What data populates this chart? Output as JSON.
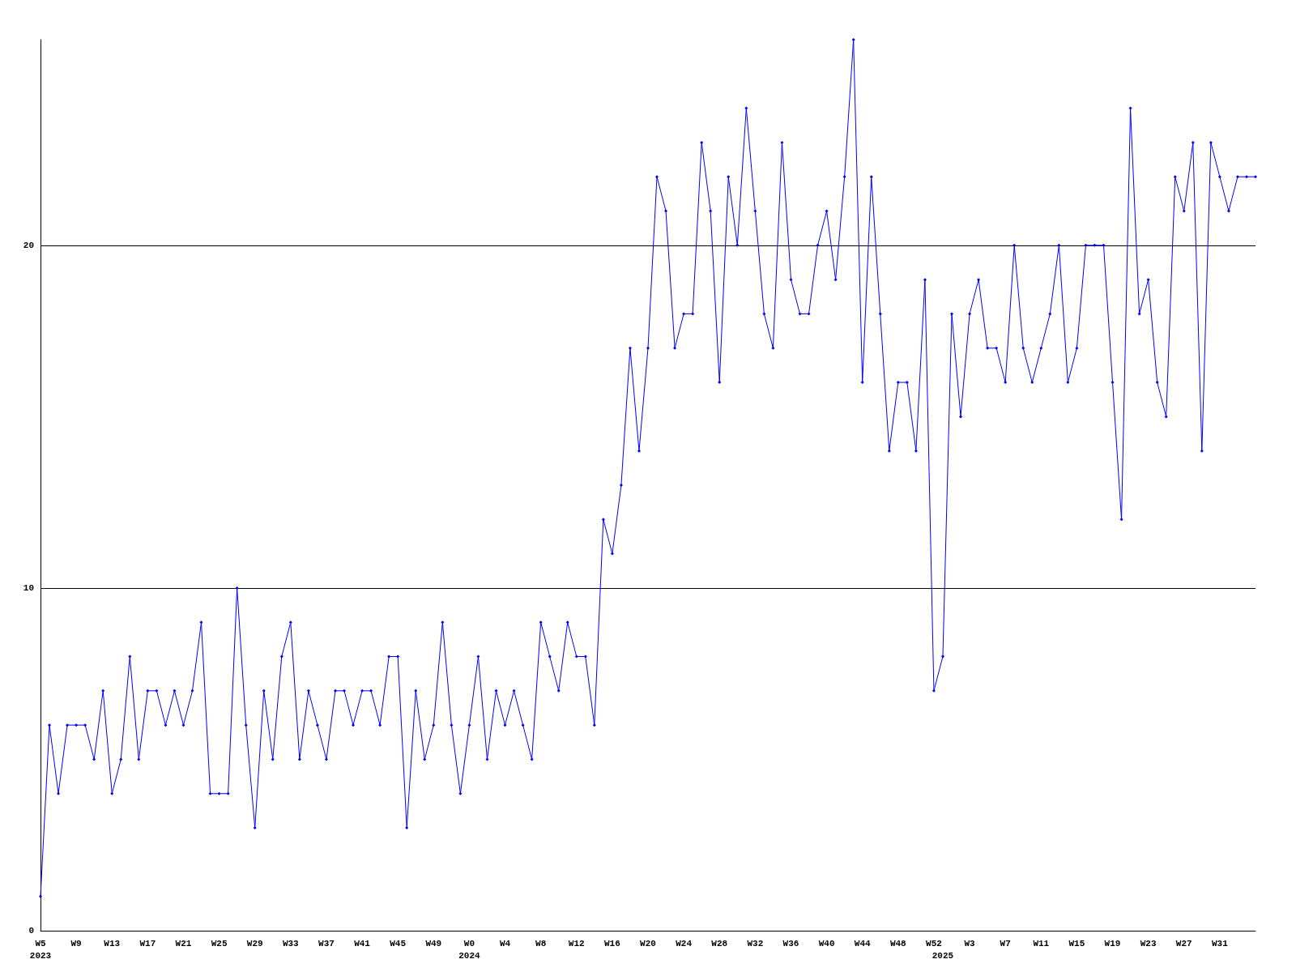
{
  "chart_data": {
    "type": "line",
    "categories": [
      "W5\n2023",
      null,
      null,
      null,
      "W9",
      null,
      null,
      null,
      "W13",
      null,
      null,
      null,
      "W17",
      null,
      null,
      null,
      "W21",
      null,
      null,
      null,
      "W25",
      null,
      null,
      null,
      "W29",
      null,
      null,
      null,
      "W33",
      null,
      null,
      null,
      "W37",
      null,
      null,
      null,
      "W41",
      null,
      null,
      null,
      "W45",
      null,
      null,
      null,
      "W49",
      null,
      null,
      null,
      "W0\n2024",
      null,
      null,
      null,
      "W4",
      null,
      null,
      null,
      "W8",
      null,
      null,
      null,
      "W12",
      null,
      null,
      null,
      "W16",
      null,
      null,
      null,
      "W20",
      null,
      null,
      null,
      "W24",
      null,
      null,
      null,
      "W28",
      null,
      null,
      null,
      "W32",
      null,
      null,
      null,
      "W36",
      null,
      null,
      null,
      "W40",
      null,
      null,
      null,
      "W44",
      null,
      null,
      null,
      "W48",
      null,
      null,
      null,
      "W52",
      "\n2025",
      null,
      null,
      "W3",
      null,
      null,
      null,
      "W7",
      null,
      null,
      null,
      "W11",
      null,
      null,
      null,
      "W15",
      null,
      null,
      null,
      "W19",
      null,
      null,
      null,
      "W23",
      null,
      null,
      null,
      "W27",
      null,
      null,
      null,
      "W31",
      null,
      null,
      null,
      null
    ],
    "series": [
      {
        "color": "#0000ff",
        "values": [
          1,
          6,
          4,
          6,
          6,
          6,
          5,
          7,
          4,
          5,
          8,
          5,
          7,
          7,
          6,
          7,
          6,
          7,
          9,
          4,
          4,
          4,
          10,
          6,
          3,
          7,
          5,
          8,
          9,
          5,
          7,
          6,
          5,
          7,
          7,
          6,
          7,
          7,
          6,
          8,
          8,
          3,
          7,
          5,
          6,
          9,
          6,
          4,
          6,
          8,
          5,
          7,
          6,
          7,
          6,
          5,
          9,
          8,
          7,
          9,
          8,
          8,
          6,
          12,
          11,
          13,
          17,
          14,
          17,
          22,
          21,
          17,
          18,
          18,
          23,
          21,
          16,
          22,
          20,
          24,
          21,
          18,
          17,
          23,
          19,
          18,
          18,
          20,
          21,
          19,
          22,
          26,
          16,
          22,
          18,
          14,
          16,
          16,
          14,
          19,
          7,
          8,
          18,
          15,
          18,
          19,
          17,
          17,
          16,
          20,
          17,
          16,
          17,
          18,
          20,
          16,
          17,
          20,
          20,
          20,
          16,
          12,
          24,
          18,
          19,
          16,
          15,
          22,
          21,
          23,
          14,
          23,
          22,
          21,
          22,
          22,
          22
        ]
      }
    ],
    "ylim": [
      0,
      26
    ],
    "yticks": [
      0,
      10,
      20
    ],
    "grid": "y",
    "marker": "diamond",
    "line_style": "solid"
  }
}
